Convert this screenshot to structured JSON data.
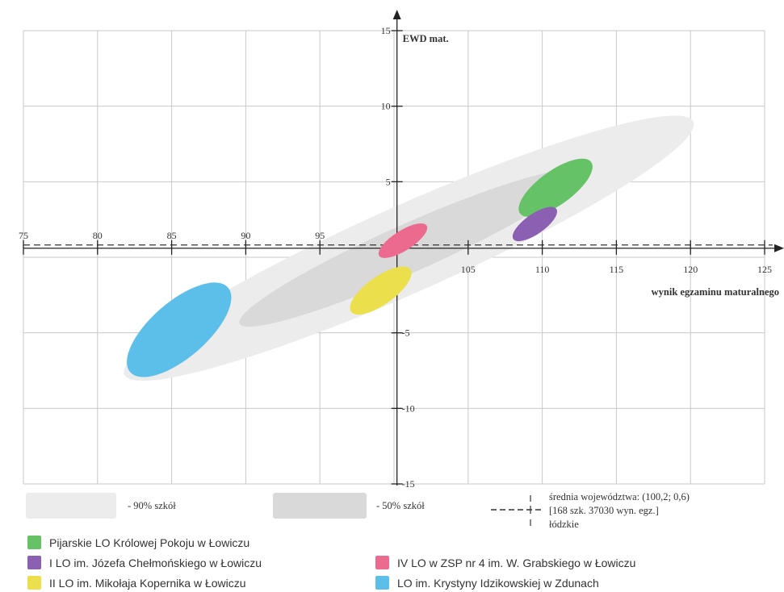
{
  "chart_data": {
    "type": "scatter",
    "title": "",
    "xlabel": "wynik egzaminu maturalnego",
    "ylabel": "EWD mat.",
    "xlim": [
      75,
      125
    ],
    "ylim": [
      -15,
      15
    ],
    "x_ticks": [
      "75",
      "80",
      "85",
      "90",
      "95",
      "105",
      "110",
      "115",
      "120",
      "125"
    ],
    "y_ticks": [
      "15",
      "10",
      "5",
      "-5",
      "-10",
      "-15"
    ],
    "grid": true,
    "reference_line": {
      "x": 100.2,
      "y": 0.6,
      "label_lines": [
        "średnia województwa: (100,2; 0,6)",
        "[168 szk. 37030 wyn. egz.]",
        "łódzkie"
      ]
    },
    "bands": [
      {
        "name": "- 90% szkół",
        "color": "#ececec",
        "center": [
          101,
          0.6
        ],
        "x_range": [
          80,
          122
        ]
      },
      {
        "name": "- 50% szkół",
        "color": "#d9d9d9",
        "center": [
          101,
          0.6
        ],
        "x_range": [
          90,
          115
        ]
      }
    ],
    "series": [
      {
        "name": "Pijarskie LO Królowej Pokoju w Łowiczu",
        "color": "#66c266",
        "center": [
          110.9,
          4.6
        ],
        "x_range": [
          108.5,
          113.3
        ],
        "y_range": [
          2.9,
          6.3
        ]
      },
      {
        "name": "I LO im. Józefa Chełmońskiego w Łowiczu",
        "color": "#8b5fb2",
        "center": [
          109.5,
          2.2
        ],
        "x_range": [
          108.1,
          111
        ],
        "y_range": [
          1.2,
          3.2
        ]
      },
      {
        "name": "II LO im. Mikołaja Kopernika w Łowiczu",
        "color": "#ebe04c",
        "center": [
          99.1,
          -2.2
        ],
        "x_range": [
          97.1,
          101.1
        ],
        "y_range": [
          -3.6,
          -0.8
        ]
      },
      {
        "name": "IV LO w ZSP nr 4 im. W. Grabskiego w Łowiczu",
        "color": "#ec6a8e",
        "center": [
          100.6,
          1.1
        ],
        "x_range": [
          99,
          102.2
        ],
        "y_range": [
          0.1,
          2.1
        ]
      },
      {
        "name": "LO im. Krystyny Idzikowskiej w Zdunach",
        "color": "#5bbfea",
        "center": [
          85.5,
          -4.8
        ],
        "x_range": [
          82.2,
          88.8
        ],
        "y_range": [
          -7.6,
          -2
        ]
      }
    ],
    "legend_position": "bottom"
  },
  "band_legend": {
    "band90_label": "- 90% szkół",
    "band50_label": "- 50% szkół"
  },
  "colors": {
    "grid": "#c8c8c8",
    "axis": "#222222",
    "band90": "#ececec",
    "band50": "#d9d9d9"
  }
}
